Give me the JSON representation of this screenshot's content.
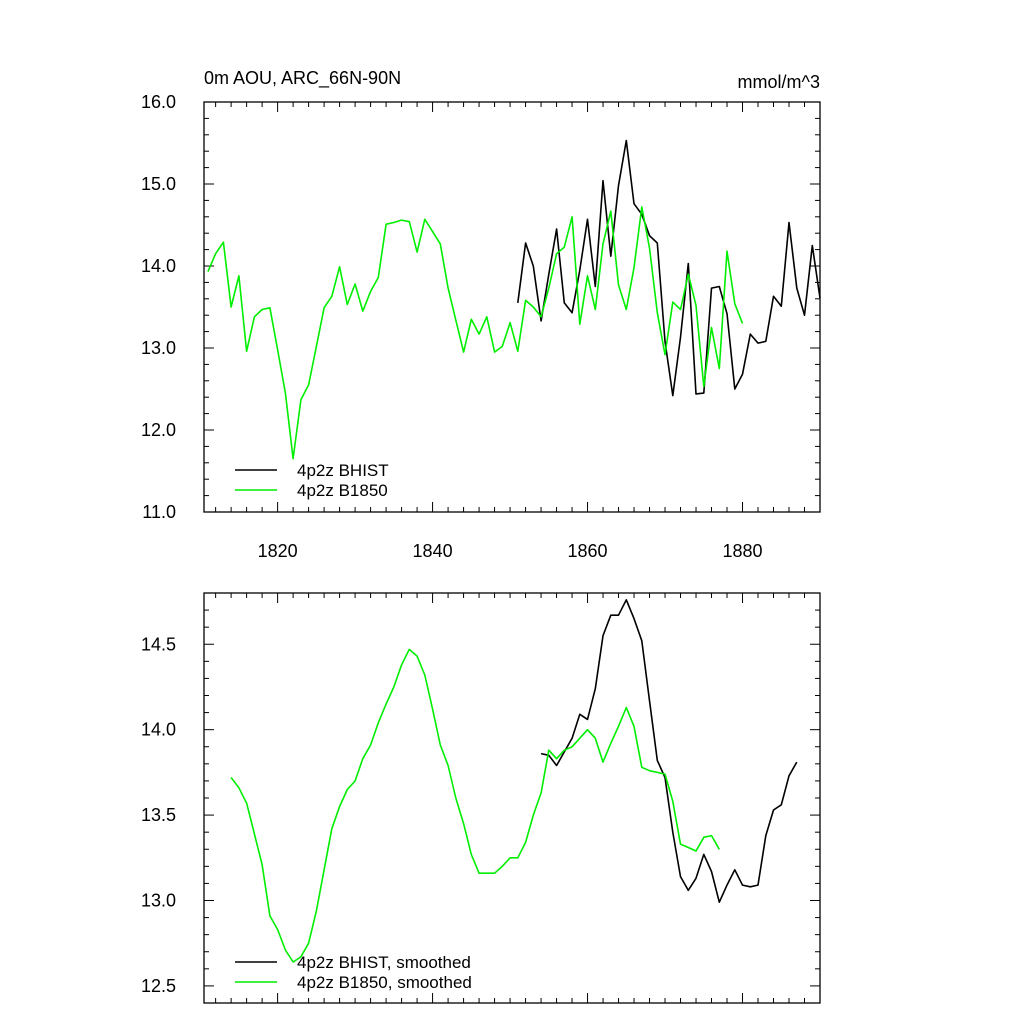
{
  "chart_data": [
    {
      "type": "line",
      "title": "0m AOU, ARC_66N-90N",
      "units": "mmol/m^3",
      "xlabel": "",
      "ylabel": "",
      "xlim": [
        1810.5,
        1890
      ],
      "ylim": [
        11.0,
        16.0
      ],
      "x_ticks": [
        1820,
        1840,
        1860,
        1880
      ],
      "x_tick_labels": [
        "1820",
        "1840",
        "1860",
        "1880"
      ],
      "y_ticks": [
        11.0,
        12.0,
        13.0,
        14.0,
        15.0,
        16.0
      ],
      "y_tick_labels": [
        "11.0",
        "12.0",
        "13.0",
        "14.0",
        "15.0",
        "16.0"
      ],
      "legend_position": "bottom-left",
      "grid": false,
      "series": [
        {
          "name": "4p2z BHIST",
          "color": "#000000",
          "x": [
            1851,
            1852,
            1853,
            1854,
            1855,
            1856,
            1857,
            1858,
            1859,
            1860,
            1861,
            1862,
            1863,
            1864,
            1865,
            1866,
            1867,
            1868,
            1869,
            1870,
            1871,
            1872,
            1873,
            1874,
            1875,
            1876,
            1877,
            1878,
            1879,
            1880,
            1881,
            1882,
            1883,
            1884,
            1885,
            1886,
            1887,
            1888,
            1889,
            1890
          ],
          "values": [
            13.55,
            14.28,
            14.0,
            13.33,
            13.9,
            14.45,
            13.55,
            13.43,
            13.95,
            14.57,
            13.75,
            15.04,
            14.12,
            14.98,
            15.53,
            14.76,
            14.63,
            14.37,
            14.28,
            13.08,
            12.42,
            13.13,
            14.03,
            12.44,
            12.45,
            13.73,
            13.75,
            13.42,
            12.5,
            12.68,
            13.17,
            13.06,
            13.08,
            13.63,
            13.51,
            14.53,
            13.73,
            13.4,
            14.25,
            13.61
          ]
        },
        {
          "name": "4p2z B1850",
          "color": "#00ee00",
          "x": [
            1811,
            1812,
            1813,
            1814,
            1815,
            1816,
            1817,
            1818,
            1819,
            1820,
            1821,
            1822,
            1823,
            1824,
            1825,
            1826,
            1827,
            1828,
            1829,
            1830,
            1831,
            1832,
            1833,
            1834,
            1835,
            1836,
            1837,
            1838,
            1839,
            1840,
            1841,
            1842,
            1843,
            1844,
            1845,
            1846,
            1847,
            1848,
            1849,
            1850,
            1851,
            1852,
            1853,
            1854,
            1855,
            1856,
            1857,
            1858,
            1859,
            1860,
            1861,
            1862,
            1863,
            1864,
            1865,
            1866,
            1867,
            1868,
            1869,
            1870,
            1871,
            1872,
            1873,
            1874,
            1875,
            1876,
            1877,
            1878,
            1879,
            1880
          ],
          "values": [
            13.93,
            14.15,
            14.29,
            13.5,
            13.88,
            12.96,
            13.38,
            13.47,
            13.49,
            12.98,
            12.45,
            11.65,
            12.37,
            12.55,
            13.02,
            13.49,
            13.63,
            13.99,
            13.53,
            13.78,
            13.45,
            13.69,
            13.86,
            14.51,
            14.53,
            14.56,
            14.54,
            14.17,
            14.57,
            14.42,
            14.27,
            13.73,
            13.34,
            12.95,
            13.35,
            13.17,
            13.38,
            12.95,
            13.02,
            13.31,
            12.96,
            13.58,
            13.5,
            13.38,
            13.73,
            14.15,
            14.23,
            14.6,
            13.29,
            13.88,
            13.47,
            14.27,
            14.67,
            13.77,
            13.47,
            13.98,
            14.72,
            14.22,
            13.43,
            12.92,
            13.56,
            13.47,
            13.9,
            13.52,
            12.53,
            13.25,
            12.75,
            14.18,
            13.54,
            13.3
          ]
        }
      ]
    },
    {
      "type": "line",
      "title": "",
      "xlabel": "",
      "ylabel": "",
      "xlim": [
        1810.5,
        1890
      ],
      "ylim": [
        12.4,
        14.8
      ],
      "x_ticks": [
        1820,
        1840,
        1860,
        1880
      ],
      "x_tick_labels": [],
      "y_ticks": [
        12.5,
        13.0,
        13.5,
        14.0,
        14.5
      ],
      "y_tick_labels": [
        "12.5",
        "13.0",
        "13.5",
        "14.0",
        "14.5"
      ],
      "legend_position": "bottom-left",
      "grid": false,
      "series": [
        {
          "name": "4p2z BHIST, smoothed",
          "color": "#000000",
          "x": [
            1854,
            1855,
            1856,
            1857,
            1858,
            1859,
            1860,
            1861,
            1862,
            1863,
            1864,
            1865,
            1866,
            1867,
            1868,
            1869,
            1870,
            1871,
            1872,
            1873,
            1874,
            1875,
            1876,
            1877,
            1878,
            1879,
            1880,
            1881,
            1882,
            1883,
            1884,
            1885,
            1886,
            1887
          ],
          "values": [
            13.86,
            13.85,
            13.79,
            13.87,
            13.95,
            14.09,
            14.06,
            14.24,
            14.55,
            14.67,
            14.67,
            14.76,
            14.65,
            14.52,
            14.17,
            13.82,
            13.72,
            13.4,
            13.14,
            13.06,
            13.13,
            13.27,
            13.17,
            12.99,
            13.09,
            13.18,
            13.09,
            13.08,
            13.09,
            13.38,
            13.53,
            13.56,
            13.73,
            13.81
          ]
        },
        {
          "name": "4p2z B1850, smoothed",
          "color": "#00ee00",
          "x": [
            1814,
            1815,
            1816,
            1817,
            1818,
            1819,
            1820,
            1821,
            1822,
            1823,
            1824,
            1825,
            1826,
            1827,
            1828,
            1829,
            1830,
            1831,
            1832,
            1833,
            1834,
            1835,
            1836,
            1837,
            1838,
            1839,
            1840,
            1841,
            1842,
            1843,
            1844,
            1845,
            1846,
            1847,
            1848,
            1849,
            1850,
            1851,
            1852,
            1853,
            1854,
            1855,
            1856,
            1857,
            1858,
            1859,
            1860,
            1861,
            1862,
            1863,
            1864,
            1865,
            1866,
            1867,
            1868,
            1869,
            1870,
            1871,
            1872,
            1873,
            1874,
            1875,
            1876,
            1877
          ],
          "values": [
            13.72,
            13.66,
            13.57,
            13.39,
            13.21,
            12.91,
            12.83,
            12.71,
            12.64,
            12.67,
            12.75,
            12.94,
            13.18,
            13.42,
            13.55,
            13.65,
            13.7,
            13.83,
            13.91,
            14.04,
            14.15,
            14.25,
            14.38,
            14.47,
            14.43,
            14.32,
            14.12,
            13.91,
            13.79,
            13.6,
            13.45,
            13.27,
            13.16,
            13.16,
            13.16,
            13.2,
            13.25,
            13.25,
            13.34,
            13.5,
            13.63,
            13.88,
            13.83,
            13.88,
            13.9,
            13.95,
            14.0,
            13.95,
            13.81,
            13.92,
            14.02,
            14.13,
            14.02,
            13.78,
            13.76,
            13.75,
            13.74,
            13.58,
            13.33,
            13.31,
            13.29,
            13.37,
            13.38,
            13.3
          ]
        }
      ]
    }
  ]
}
